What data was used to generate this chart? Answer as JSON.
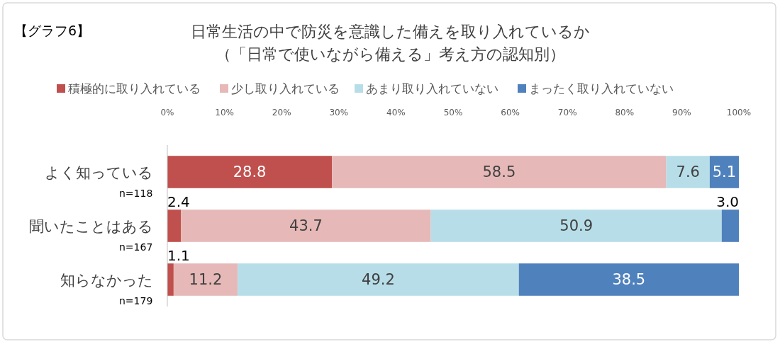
{
  "chart_data": {
    "type": "bar",
    "orientation": "horizontal",
    "stacked": true,
    "title": "日常生活の中で防災を意識した備えを取り入れているか",
    "subtitle": "（「日常で使いながら備える」考え方の認知別）",
    "annotations": [
      "【グラフ6】",
      "n=118",
      "n=167",
      "n=179"
    ],
    "categories": [
      "よく知っている",
      "聞いたことはある",
      "知らなかった"
    ],
    "series": [
      {
        "name": "積極的に取り入れている",
        "color": "#c0504d",
        "values": [
          28.8,
          2.4,
          1.1
        ],
        "value_labels": [
          "28.8",
          "2.4",
          "1.1"
        ]
      },
      {
        "name": "少し取り入れている",
        "color": "#e6b9b8",
        "values": [
          58.5,
          43.7,
          11.2
        ],
        "value_labels": [
          "58.5",
          "43.7",
          "11.2"
        ]
      },
      {
        "name": "あまり取り入れていない",
        "color": "#b7dee8",
        "values": [
          7.6,
          50.9,
          49.2
        ],
        "value_labels": [
          "7.6",
          "50.9",
          "49.2"
        ]
      },
      {
        "name": "まったく取り入れていない",
        "color": "#4f81bd",
        "values": [
          5.1,
          3.0,
          38.5
        ],
        "value_labels": [
          "5.1",
          "3.0",
          "38.5"
        ]
      }
    ],
    "xlim": [
      0,
      100
    ],
    "xticks": [
      {
        "value": 0,
        "label": "0%"
      },
      {
        "value": 10,
        "label": "10%"
      },
      {
        "value": 20,
        "label": "20%"
      },
      {
        "value": 30,
        "label": "30%"
      },
      {
        "value": 40,
        "label": "40%"
      },
      {
        "value": 50,
        "label": "50%"
      },
      {
        "value": 60,
        "label": "60%"
      },
      {
        "value": 70,
        "label": "70%"
      },
      {
        "value": 80,
        "label": "80%"
      },
      {
        "value": 90,
        "label": "90%"
      },
      {
        "value": 100,
        "label": "100%"
      }
    ],
    "legend": "top",
    "grid": false
  }
}
